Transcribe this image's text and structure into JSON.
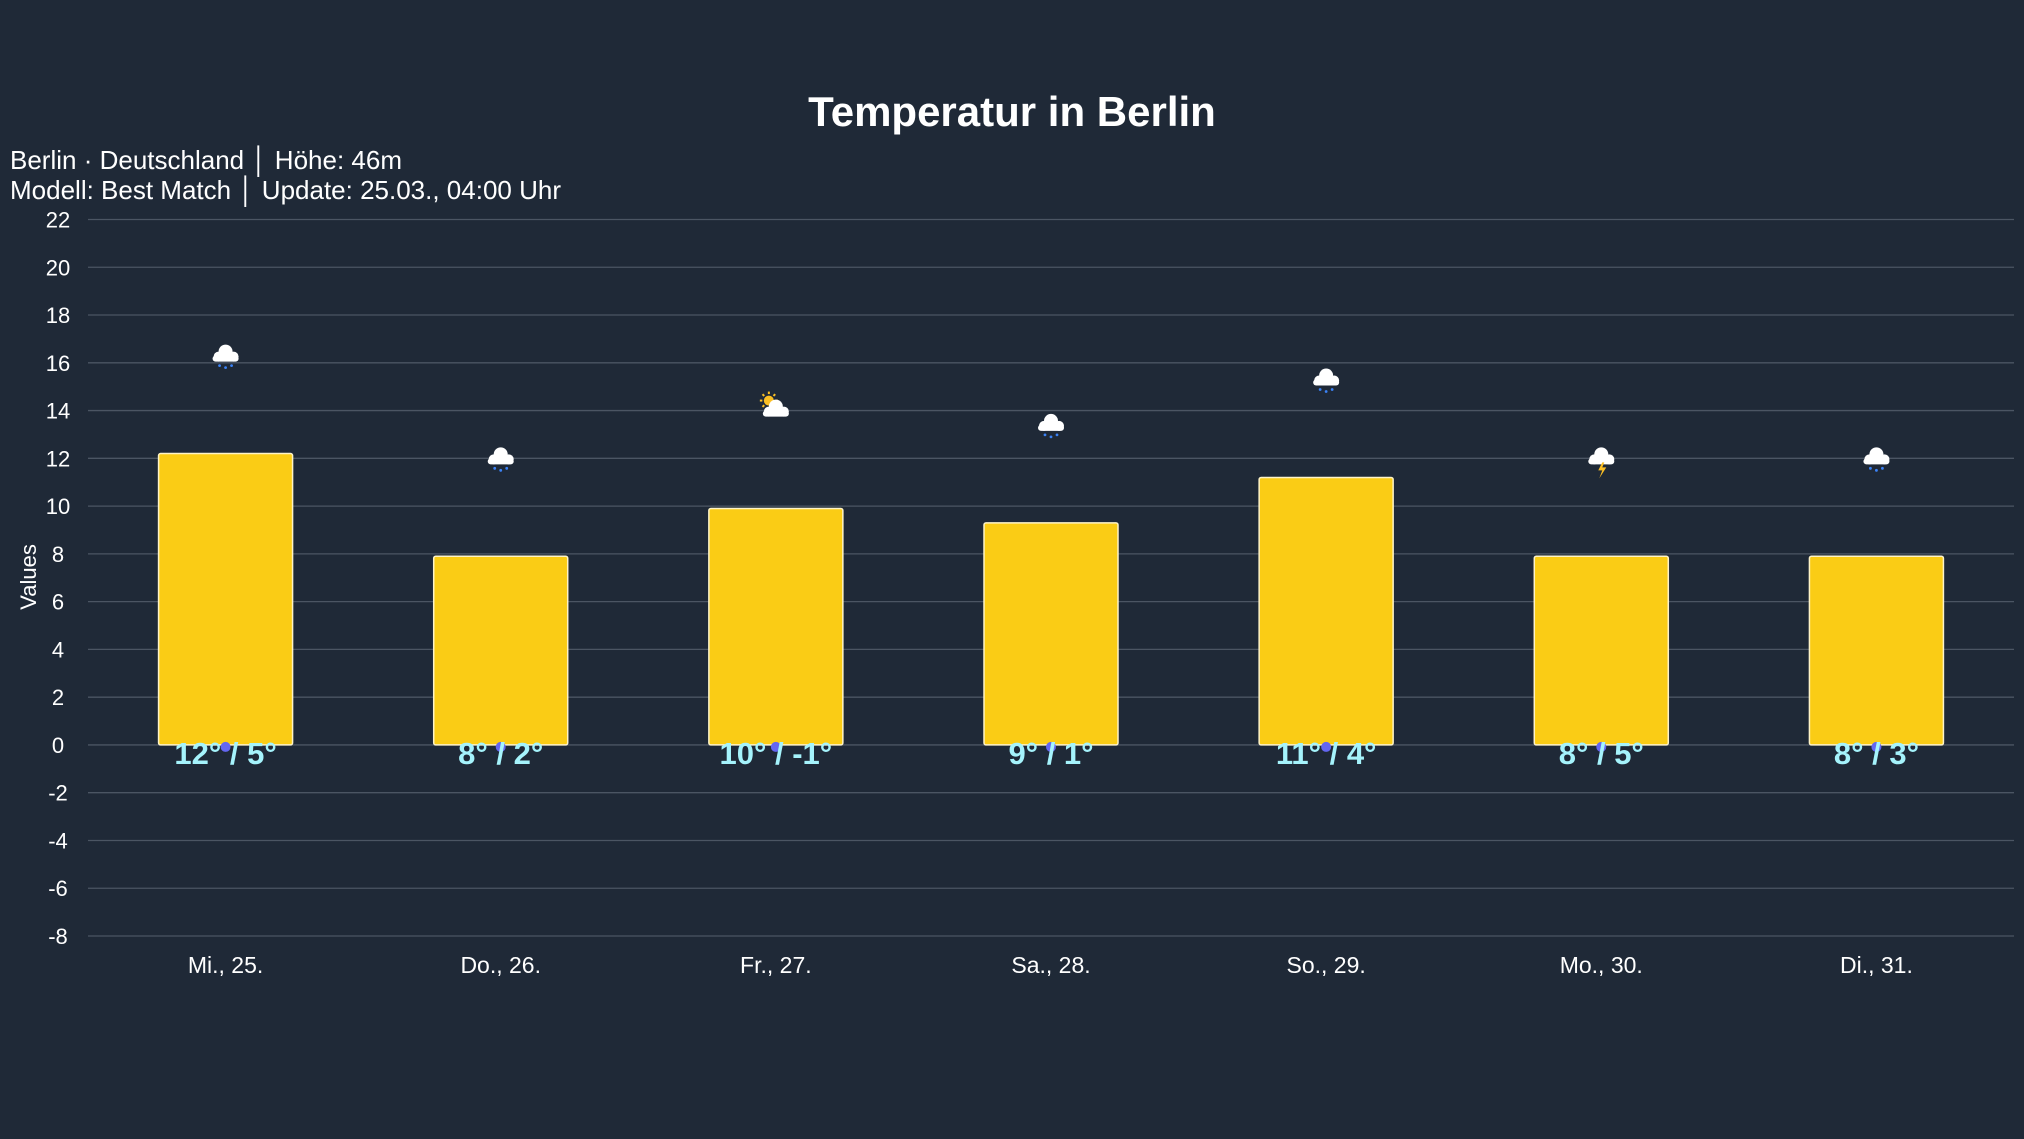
{
  "chart_data": {
    "type": "bar",
    "title": "Temperatur in Berlin",
    "subtitle_lines": [
      "Berlin · Deutschland │ Höhe: 46m",
      "Modell: Best Match │ Update: 25.03., 04:00 Uhr"
    ],
    "xlabel": "",
    "ylabel": "Values",
    "ylim": [
      -8,
      22
    ],
    "yticks": [
      22,
      20,
      18,
      16,
      14,
      12,
      10,
      8,
      6,
      4,
      2,
      0,
      -2,
      -4,
      -6,
      -8
    ],
    "grid": true,
    "categories": [
      "Mi., 25.",
      "Do., 26.",
      "Fr., 27.",
      "Sa., 28.",
      "So., 29.",
      "Mo., 30.",
      "Di., 31."
    ],
    "values": [
      12.2,
      7.9,
      9.9,
      9.3,
      11.2,
      7.9,
      7.9
    ],
    "data_labels": [
      "12° / 5°",
      "8° / 2°",
      "10° / -1°",
      "9° / 1°",
      "11° / 4°",
      "8° / 5°",
      "8° / 3°"
    ],
    "weather_icons": [
      "rain-cloud",
      "rain-cloud",
      "partly-sunny",
      "rain-cloud",
      "rain-cloud",
      "thunderstorm-cloud",
      "rain-cloud"
    ],
    "colors": {
      "background": "#1f2937",
      "bar": "#facc15",
      "bar_border": "#fef3c7",
      "data_label": "#a5f3fc",
      "grid": "#4b5563",
      "text": "#ffffff",
      "rain": "#3b82f6",
      "sun": "#fbbf24"
    }
  }
}
